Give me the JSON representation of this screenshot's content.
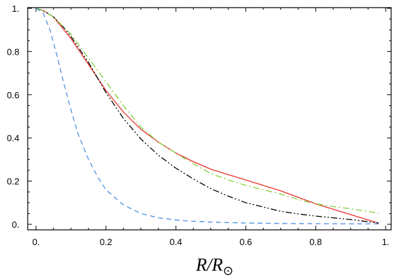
{
  "chart_data": {
    "type": "line",
    "title": "",
    "xlabel": "R/R⊙",
    "xlabel_parts": {
      "main": "R/R",
      "sub": "⊙"
    },
    "ylabel": "",
    "xlim": [
      0,
      1
    ],
    "ylim": [
      0,
      1
    ],
    "grid": false,
    "x_ticks": [
      0,
      0.2,
      0.4,
      0.6,
      0.8,
      1
    ],
    "x_tick_labels": [
      "0.",
      "0.2",
      "0.4",
      "0.6",
      "0.8",
      "1."
    ],
    "y_ticks": [
      0,
      0.2,
      0.4,
      0.6,
      0.8,
      1
    ],
    "y_tick_labels": [
      "0.",
      "0.2",
      "0.4",
      "0.6",
      "0.8",
      "1."
    ],
    "series": [
      {
        "color": "#e8322c",
        "dash": "solid",
        "x": [
          0,
          0.02,
          0.05,
          0.1,
          0.15,
          0.2,
          0.25,
          0.3,
          0.35,
          0.4,
          0.45,
          0.5,
          0.55,
          0.6,
          0.65,
          0.7,
          0.75,
          0.8,
          0.85,
          0.9,
          0.95,
          0.98
        ],
        "y": [
          1.0,
          0.99,
          0.96,
          0.86,
          0.74,
          0.62,
          0.52,
          0.44,
          0.38,
          0.33,
          0.29,
          0.255,
          0.23,
          0.205,
          0.18,
          0.155,
          0.125,
          0.095,
          0.07,
          0.045,
          0.02,
          0.005
        ]
      },
      {
        "color": "#000000",
        "dash": "dashdotdot",
        "x": [
          0,
          0.02,
          0.05,
          0.08,
          0.1,
          0.15,
          0.2,
          0.25,
          0.3,
          0.35,
          0.4,
          0.45,
          0.5,
          0.55,
          0.6,
          0.65,
          0.7,
          0.75,
          0.8,
          0.85,
          0.9,
          0.95,
          0.98
        ],
        "y": [
          1.0,
          0.99,
          0.96,
          0.91,
          0.87,
          0.75,
          0.61,
          0.49,
          0.395,
          0.32,
          0.26,
          0.21,
          0.165,
          0.13,
          0.1,
          0.08,
          0.06,
          0.048,
          0.038,
          0.03,
          0.022,
          0.012,
          0.006
        ]
      },
      {
        "color": "#7fd13a",
        "dash": "dashdot",
        "x": [
          0,
          0.02,
          0.05,
          0.1,
          0.15,
          0.2,
          0.25,
          0.3,
          0.35,
          0.4,
          0.45,
          0.5,
          0.55,
          0.6,
          0.65,
          0.7,
          0.75,
          0.8,
          0.85,
          0.9,
          0.95,
          0.98
        ],
        "y": [
          1.0,
          0.99,
          0.96,
          0.88,
          0.77,
          0.66,
          0.55,
          0.45,
          0.38,
          0.33,
          0.28,
          0.235,
          0.205,
          0.18,
          0.16,
          0.14,
          0.115,
          0.095,
          0.082,
          0.072,
          0.06,
          0.05
        ]
      },
      {
        "color": "#4a90e2",
        "dash": "dashed",
        "x": [
          0,
          0.02,
          0.04,
          0.06,
          0.08,
          0.1,
          0.12,
          0.15,
          0.18,
          0.2,
          0.25,
          0.3,
          0.35,
          0.4,
          0.45,
          0.5,
          0.6,
          0.7,
          0.8,
          0.9,
          0.98
        ],
        "y": [
          1.0,
          0.98,
          0.9,
          0.78,
          0.65,
          0.53,
          0.42,
          0.3,
          0.21,
          0.16,
          0.09,
          0.05,
          0.03,
          0.02,
          0.014,
          0.01,
          0.006,
          0.004,
          0.003,
          0.002,
          0.002
        ]
      }
    ]
  }
}
